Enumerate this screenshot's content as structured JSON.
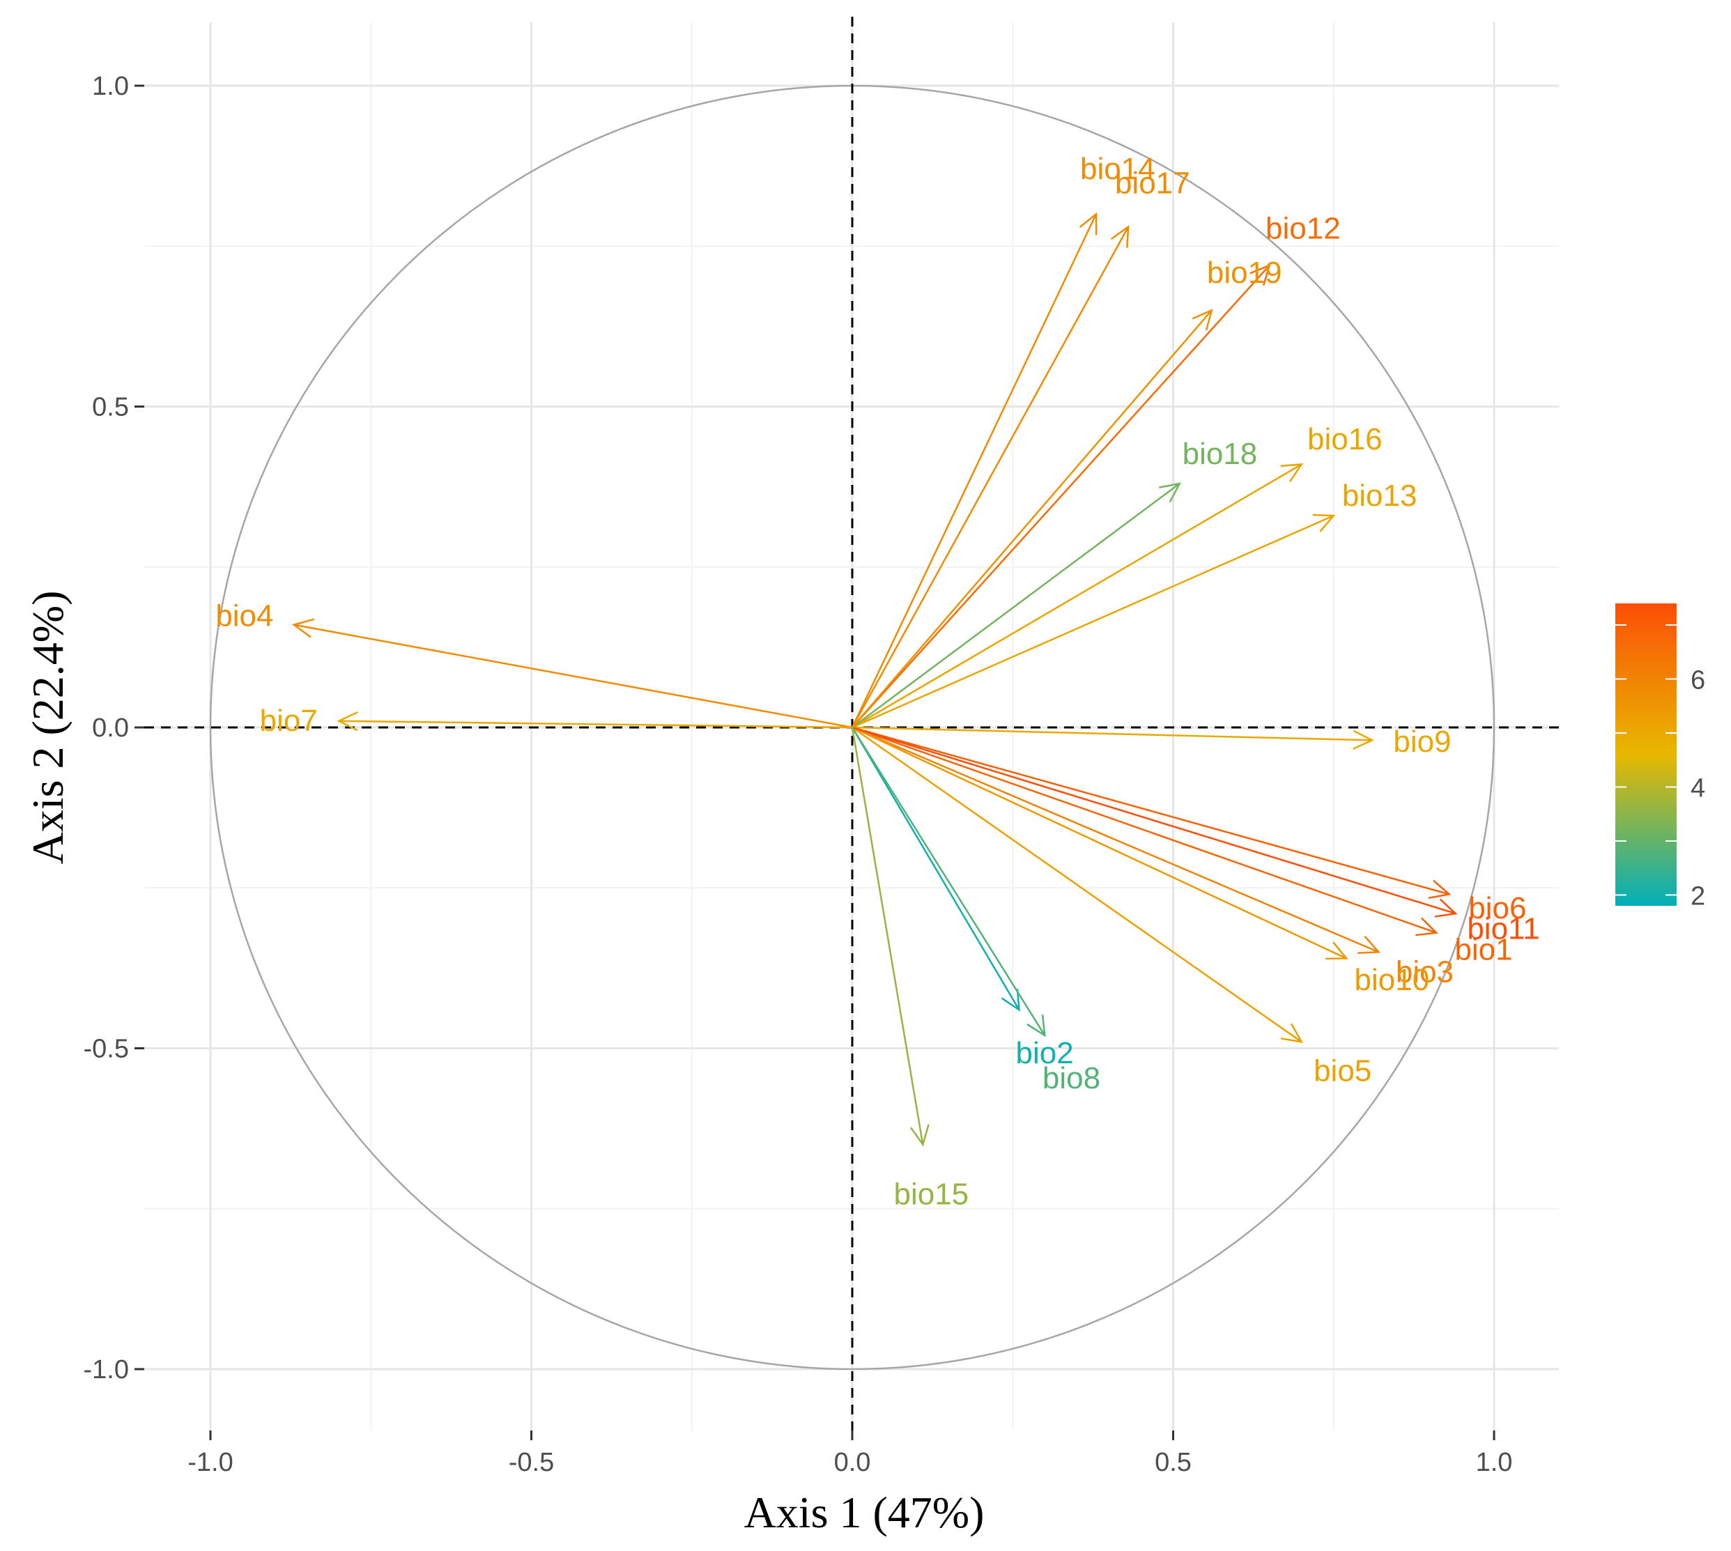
{
  "chart_data": {
    "type": "scatter",
    "subtype": "pca-correlation-circle",
    "title": "",
    "xlabel": "Axis 1 (47%)",
    "ylabel": "Axis 2 (22.4%)",
    "xlim": [
      -1.1,
      1.1
    ],
    "ylim": [
      -1.1,
      1.1
    ],
    "x_ticks": [
      -1.0,
      -0.5,
      0.0,
      0.5,
      1.0
    ],
    "y_ticks": [
      -1.0,
      -0.5,
      0.0,
      0.5,
      1.0
    ],
    "x_tick_labels": [
      "-1.0",
      "-0.5",
      "0.0",
      "0.5",
      "1.0"
    ],
    "y_tick_labels": [
      "-1.0",
      "-0.5",
      "0.0",
      "0.5",
      "1.0"
    ],
    "grid": true,
    "unit_circle": true,
    "reference_lines": [
      0,
      0
    ],
    "colorbar": {
      "position": "right",
      "min": 1.8,
      "max": 7.4,
      "ticks": [
        2,
        4,
        6
      ],
      "tick_labels": [
        "2",
        "4",
        "6"
      ],
      "low_color": "#00AFBB",
      "mid_color": "#E7B800",
      "high_color": "#FC4E07"
    },
    "variables": [
      {
        "name": "bio1",
        "x": 0.91,
        "y": -0.32,
        "contrib": 6.8
      },
      {
        "name": "bio2",
        "x": 0.26,
        "y": -0.44,
        "contrib": 2.0
      },
      {
        "name": "bio3",
        "x": 0.82,
        "y": -0.35,
        "contrib": 6.0
      },
      {
        "name": "bio4",
        "x": -0.87,
        "y": 0.16,
        "contrib": 5.8
      },
      {
        "name": "bio5",
        "x": 0.7,
        "y": -0.49,
        "contrib": 5.2
      },
      {
        "name": "bio6",
        "x": 0.93,
        "y": -0.26,
        "contrib": 6.9
      },
      {
        "name": "bio7",
        "x": -0.8,
        "y": 0.01,
        "contrib": 5.0
      },
      {
        "name": "bio8",
        "x": 0.3,
        "y": -0.48,
        "contrib": 2.8
      },
      {
        "name": "bio9",
        "x": 0.81,
        "y": -0.02,
        "contrib": 5.0
      },
      {
        "name": "bio10",
        "x": 0.77,
        "y": -0.36,
        "contrib": 5.4
      },
      {
        "name": "bio11",
        "x": 0.94,
        "y": -0.29,
        "contrib": 7.4
      },
      {
        "name": "bio12",
        "x": 0.65,
        "y": 0.72,
        "contrib": 6.6
      },
      {
        "name": "bio13",
        "x": 0.75,
        "y": 0.33,
        "contrib": 5.1
      },
      {
        "name": "bio14",
        "x": 0.38,
        "y": 0.8,
        "contrib": 5.8
      },
      {
        "name": "bio15",
        "x": 0.11,
        "y": -0.65,
        "contrib": 3.6
      },
      {
        "name": "bio16",
        "x": 0.7,
        "y": 0.41,
        "contrib": 5.1
      },
      {
        "name": "bio17",
        "x": 0.43,
        "y": 0.78,
        "contrib": 5.8
      },
      {
        "name": "bio18",
        "x": 0.51,
        "y": 0.38,
        "contrib": 3.2
      },
      {
        "name": "bio19",
        "x": 0.56,
        "y": 0.65,
        "contrib": 5.6
      }
    ]
  }
}
